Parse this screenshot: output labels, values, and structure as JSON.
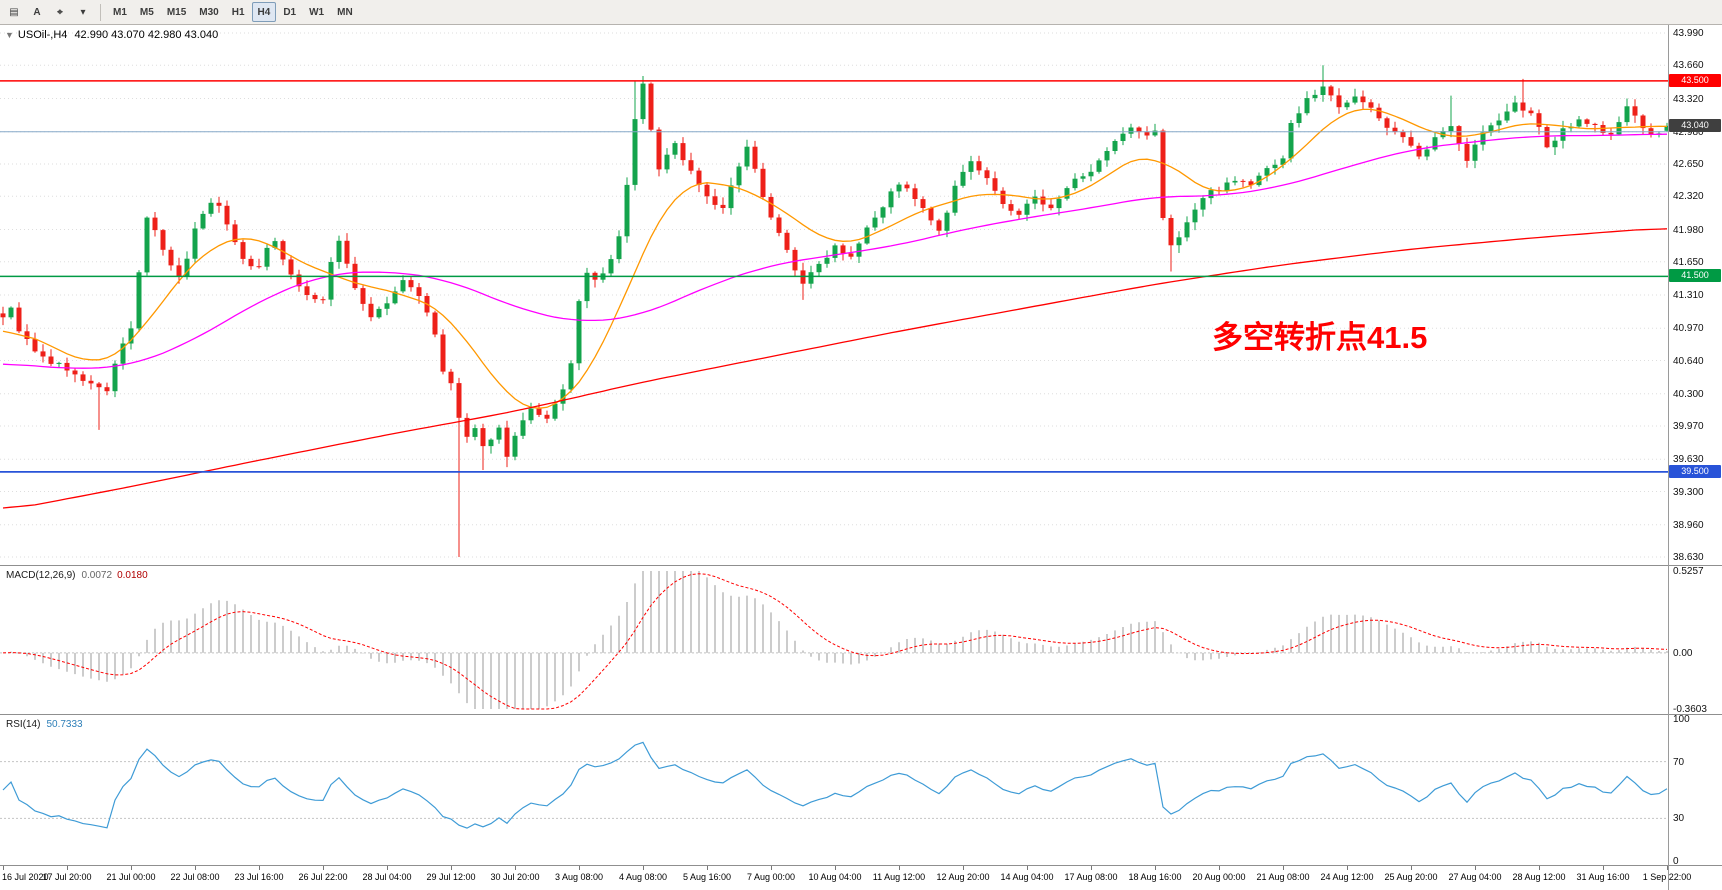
{
  "toolbar": {
    "tools": [
      {
        "name": "chart-templates-button",
        "icon": "templates-icon",
        "glyph": "▤"
      },
      {
        "name": "text-label-button",
        "icon": "text-label-icon",
        "glyph": "A"
      },
      {
        "name": "crosshair-tool-button",
        "icon": "crosshair-icon",
        "glyph": "⌖"
      },
      {
        "name": "tools-dropdown-button",
        "icon": "chevron-down-icon",
        "glyph": "▾"
      }
    ],
    "timeframes": [
      "M1",
      "M5",
      "M15",
      "M30",
      "H1",
      "H4",
      "D1",
      "W1",
      "MN"
    ],
    "active_timeframe": "H4"
  },
  "chart": {
    "title": "USOil-,H4",
    "ohlc": "42.990 43.070 42.980 43.040",
    "annotation": {
      "text": "多空转折点41.5",
      "color": "#ff0000"
    },
    "price_axis": {
      "ticks": [
        "43.990",
        "43.660",
        "43.320",
        "42.980",
        "42.650",
        "42.320",
        "41.980",
        "41.650",
        "41.310",
        "40.970",
        "40.640",
        "40.300",
        "39.970",
        "39.630",
        "39.300",
        "38.960",
        "38.630"
      ],
      "badges": [
        {
          "label": "43.500",
          "price": 43.5,
          "bg": "#ff0000"
        },
        {
          "label": "43.040",
          "price": 43.04,
          "bg": "#3f3f3f"
        },
        {
          "label": "41.500",
          "price": 41.5,
          "bg": "#009a44"
        },
        {
          "label": "39.500",
          "price": 39.5,
          "bg": "#2853d8"
        }
      ]
    },
    "time_axis": [
      "16 Jul 2020",
      "17 Jul 20:00",
      "21 Jul 00:00",
      "22 Jul 08:00",
      "23 Jul 16:00",
      "26 Jul 22:00",
      "28 Jul 04:00",
      "29 Jul 12:00",
      "30 Jul 20:00",
      "3 Aug 08:00",
      "4 Aug 08:00",
      "5 Aug 16:00",
      "7 Aug 00:00",
      "10 Aug 04:00",
      "11 Aug 12:00",
      "12 Aug 20:00",
      "14 Aug 04:00",
      "17 Aug 08:00",
      "18 Aug 16:00",
      "20 Aug 00:00",
      "21 Aug 08:00",
      "24 Aug 12:00",
      "25 Aug 20:00",
      "27 Aug 04:00",
      "28 Aug 12:00",
      "31 Aug 16:00",
      "1 Sep 22:00"
    ]
  },
  "macd_panel": {
    "label": "MACD(12,26,9)",
    "value_main": "0.0072",
    "value_signal": "0.0180",
    "axis": [
      "0.5257",
      "0.00",
      "-0.3603"
    ]
  },
  "rsi_panel": {
    "label": "RSI(14)",
    "value": "50.7333",
    "axis": [
      "100",
      "70",
      "30",
      "0"
    ]
  },
  "chart_data": {
    "type": "candlestick",
    "symbol": "USOil-",
    "timeframe": "H4",
    "title": "USOil-,H4 42.990 43.070 42.980 43.040",
    "bars": 208,
    "price_range": [
      38.63,
      43.99
    ],
    "current": {
      "open": 42.99,
      "high": 43.07,
      "low": 42.98,
      "close": 43.04
    },
    "colors": {
      "bull": "#14a44c",
      "bear": "#ee2019",
      "background": "#ffffff",
      "grid": "#dedede"
    },
    "hlines": [
      {
        "price": 43.5,
        "color": "#ff0000",
        "width": 1.5
      },
      {
        "price": 42.98,
        "color": "#86a8c8",
        "width": 1.0
      },
      {
        "price": 41.5,
        "color": "#009a44",
        "width": 1.5
      },
      {
        "price": 39.5,
        "color": "#2853d8",
        "width": 1.8
      }
    ],
    "close_path": [
      [
        0,
        41.1
      ],
      [
        1,
        41.16
      ],
      [
        2,
        40.96
      ],
      [
        4,
        40.72
      ],
      [
        6,
        40.62
      ],
      [
        8,
        40.56
      ],
      [
        10,
        40.42
      ],
      [
        12,
        40.38
      ],
      [
        13,
        40.3
      ],
      [
        14,
        40.62
      ],
      [
        15,
        40.8
      ],
      [
        16,
        40.96
      ],
      [
        17,
        41.55
      ],
      [
        18,
        42.1
      ],
      [
        19,
        41.95
      ],
      [
        20,
        41.75
      ],
      [
        22,
        41.48
      ],
      [
        23,
        41.7
      ],
      [
        24,
        41.98
      ],
      [
        25,
        42.15
      ],
      [
        26,
        42.28
      ],
      [
        27,
        42.2
      ],
      [
        28,
        42.05
      ],
      [
        29,
        41.85
      ],
      [
        30,
        41.68
      ],
      [
        32,
        41.58
      ],
      [
        33,
        41.78
      ],
      [
        34,
        41.88
      ],
      [
        35,
        41.7
      ],
      [
        36,
        41.52
      ],
      [
        38,
        41.3
      ],
      [
        40,
        41.26
      ],
      [
        41,
        41.62
      ],
      [
        42,
        41.86
      ],
      [
        43,
        41.65
      ],
      [
        44,
        41.38
      ],
      [
        46,
        41.08
      ],
      [
        48,
        41.22
      ],
      [
        50,
        41.46
      ],
      [
        52,
        41.3
      ],
      [
        53,
        41.15
      ],
      [
        54,
        40.88
      ],
      [
        55,
        40.52
      ],
      [
        56,
        40.4
      ],
      [
        57,
        40.05
      ],
      [
        58,
        39.85
      ],
      [
        59,
        39.92
      ],
      [
        60,
        39.74
      ],
      [
        61,
        39.86
      ],
      [
        62,
        39.94
      ],
      [
        63,
        39.68
      ],
      [
        64,
        39.86
      ],
      [
        65,
        40.02
      ],
      [
        66,
        40.12
      ],
      [
        68,
        40.02
      ],
      [
        69,
        40.18
      ],
      [
        70,
        40.36
      ],
      [
        71,
        40.6
      ],
      [
        72,
        41.22
      ],
      [
        73,
        41.56
      ],
      [
        74,
        41.44
      ],
      [
        75,
        41.52
      ],
      [
        76,
        41.66
      ],
      [
        77,
        41.92
      ],
      [
        78,
        42.42
      ],
      [
        79,
        43.12
      ],
      [
        80,
        43.46
      ],
      [
        81,
        42.98
      ],
      [
        82,
        42.62
      ],
      [
        83,
        42.74
      ],
      [
        84,
        42.86
      ],
      [
        85,
        42.7
      ],
      [
        86,
        42.58
      ],
      [
        87,
        42.45
      ],
      [
        88,
        42.32
      ],
      [
        90,
        42.18
      ],
      [
        91,
        42.42
      ],
      [
        92,
        42.62
      ],
      [
        93,
        42.8
      ],
      [
        94,
        42.58
      ],
      [
        95,
        42.34
      ],
      [
        96,
        42.12
      ],
      [
        97,
        41.94
      ],
      [
        98,
        41.76
      ],
      [
        99,
        41.58
      ],
      [
        100,
        41.44
      ],
      [
        101,
        41.52
      ],
      [
        102,
        41.62
      ],
      [
        104,
        41.82
      ],
      [
        105,
        41.76
      ],
      [
        106,
        41.72
      ],
      [
        107,
        41.86
      ],
      [
        108,
        42.02
      ],
      [
        110,
        42.22
      ],
      [
        111,
        42.35
      ],
      [
        112,
        42.46
      ],
      [
        113,
        42.38
      ],
      [
        114,
        42.28
      ],
      [
        116,
        42.08
      ],
      [
        117,
        41.94
      ],
      [
        118,
        42.15
      ],
      [
        119,
        42.4
      ],
      [
        120,
        42.55
      ],
      [
        121,
        42.68
      ],
      [
        122,
        42.6
      ],
      [
        123,
        42.48
      ],
      [
        124,
        42.35
      ],
      [
        126,
        42.18
      ],
      [
        127,
        42.14
      ],
      [
        128,
        42.22
      ],
      [
        129,
        42.32
      ],
      [
        130,
        42.24
      ],
      [
        131,
        42.18
      ],
      [
        132,
        42.28
      ],
      [
        133,
        42.4
      ],
      [
        134,
        42.48
      ],
      [
        135,
        42.55
      ],
      [
        136,
        42.6
      ],
      [
        137,
        42.66
      ],
      [
        138,
        42.76
      ],
      [
        139,
        42.86
      ],
      [
        140,
        42.94
      ],
      [
        141,
        43.0
      ],
      [
        142,
        42.96
      ],
      [
        143,
        42.92
      ],
      [
        144,
        43.0
      ],
      [
        145,
        42.1
      ],
      [
        146,
        41.8
      ],
      [
        147,
        41.92
      ],
      [
        148,
        42.06
      ],
      [
        149,
        42.18
      ],
      [
        150,
        42.3
      ],
      [
        151,
        42.36
      ],
      [
        152,
        42.4
      ],
      [
        153,
        42.46
      ],
      [
        154,
        42.5
      ],
      [
        155,
        42.46
      ],
      [
        156,
        42.44
      ],
      [
        157,
        42.52
      ],
      [
        158,
        42.6
      ],
      [
        159,
        42.66
      ],
      [
        160,
        42.72
      ],
      [
        161,
        43.06
      ],
      [
        162,
        43.18
      ],
      [
        163,
        43.3
      ],
      [
        164,
        43.38
      ],
      [
        165,
        43.44
      ],
      [
        166,
        43.34
      ],
      [
        167,
        43.26
      ],
      [
        168,
        43.3
      ],
      [
        169,
        43.36
      ],
      [
        170,
        43.28
      ],
      [
        171,
        43.2
      ],
      [
        172,
        43.12
      ],
      [
        173,
        43.04
      ],
      [
        174,
        42.98
      ],
      [
        175,
        42.94
      ],
      [
        176,
        42.82
      ],
      [
        177,
        42.7
      ],
      [
        178,
        42.8
      ],
      [
        179,
        42.9
      ],
      [
        180,
        42.98
      ],
      [
        181,
        43.06
      ],
      [
        182,
        42.88
      ],
      [
        183,
        42.7
      ],
      [
        184,
        42.84
      ],
      [
        185,
        42.96
      ],
      [
        186,
        43.04
      ],
      [
        187,
        43.1
      ],
      [
        188,
        43.18
      ],
      [
        189,
        43.26
      ],
      [
        190,
        43.22
      ],
      [
        191,
        43.18
      ],
      [
        192,
        43.0
      ],
      [
        193,
        42.8
      ],
      [
        194,
        42.9
      ],
      [
        195,
        43.0
      ],
      [
        196,
        43.06
      ],
      [
        197,
        43.1
      ],
      [
        198,
        43.08
      ],
      [
        199,
        43.04
      ],
      [
        200,
        42.98
      ],
      [
        201,
        42.94
      ],
      [
        202,
        43.08
      ],
      [
        203,
        43.24
      ],
      [
        204,
        43.12
      ],
      [
        205,
        43.0
      ],
      [
        206,
        42.96
      ],
      [
        207,
        42.98
      ],
      [
        208,
        43.04
      ]
    ],
    "wick_extremes": [
      {
        "i": 12,
        "low": 39.93
      },
      {
        "i": 57,
        "low": 38.63
      },
      {
        "i": 60,
        "low": 39.52
      },
      {
        "i": 63,
        "low": 39.55
      },
      {
        "i": 79,
        "high": 43.5
      },
      {
        "i": 80,
        "high": 43.55
      },
      {
        "i": 100,
        "low": 41.26
      },
      {
        "i": 146,
        "low": 41.55
      },
      {
        "i": 165,
        "high": 43.66
      },
      {
        "i": 181,
        "high": 43.35
      },
      {
        "i": 190,
        "high": 43.52
      },
      {
        "i": 203,
        "high": 43.32
      }
    ],
    "moving_averages": [
      {
        "name": "ma-fast",
        "color": "#ff9800",
        "path": [
          [
            0,
            41.0
          ],
          [
            4,
            40.88
          ],
          [
            8,
            40.7
          ],
          [
            12,
            40.55
          ],
          [
            16,
            40.75
          ],
          [
            20,
            41.3
          ],
          [
            24,
            41.65
          ],
          [
            28,
            41.95
          ],
          [
            32,
            41.9
          ],
          [
            36,
            41.72
          ],
          [
            40,
            41.5
          ],
          [
            44,
            41.48
          ],
          [
            48,
            41.3
          ],
          [
            52,
            41.32
          ],
          [
            56,
            41.1
          ],
          [
            60,
            40.6
          ],
          [
            64,
            40.15
          ],
          [
            68,
            40.05
          ],
          [
            72,
            40.35
          ],
          [
            76,
            40.9
          ],
          [
            80,
            41.8
          ],
          [
            84,
            42.45
          ],
          [
            88,
            42.5
          ],
          [
            92,
            42.4
          ],
          [
            96,
            42.3
          ],
          [
            100,
            42.0
          ],
          [
            104,
            41.8
          ],
          [
            108,
            41.85
          ],
          [
            112,
            42.1
          ],
          [
            116,
            42.2
          ],
          [
            120,
            42.3
          ],
          [
            124,
            42.4
          ],
          [
            128,
            42.28
          ],
          [
            132,
            42.26
          ],
          [
            136,
            42.4
          ],
          [
            140,
            42.65
          ],
          [
            144,
            42.85
          ],
          [
            148,
            42.45
          ],
          [
            152,
            42.3
          ],
          [
            156,
            42.42
          ],
          [
            160,
            42.58
          ],
          [
            164,
            42.95
          ],
          [
            168,
            43.25
          ],
          [
            172,
            43.25
          ],
          [
            176,
            43.05
          ],
          [
            180,
            42.92
          ],
          [
            184,
            42.9
          ],
          [
            188,
            43.05
          ],
          [
            192,
            43.1
          ],
          [
            196,
            43.0
          ],
          [
            200,
            43.0
          ],
          [
            204,
            43.05
          ],
          [
            208,
            43.02
          ]
        ]
      },
      {
        "name": "ma-mid",
        "color": "#ff00ff",
        "path": [
          [
            0,
            40.62
          ],
          [
            8,
            40.55
          ],
          [
            16,
            40.58
          ],
          [
            24,
            40.85
          ],
          [
            32,
            41.25
          ],
          [
            40,
            41.52
          ],
          [
            48,
            41.56
          ],
          [
            56,
            41.46
          ],
          [
            64,
            41.18
          ],
          [
            72,
            41.02
          ],
          [
            80,
            41.1
          ],
          [
            88,
            41.4
          ],
          [
            96,
            41.62
          ],
          [
            104,
            41.72
          ],
          [
            112,
            41.82
          ],
          [
            120,
            41.98
          ],
          [
            128,
            42.1
          ],
          [
            136,
            42.2
          ],
          [
            144,
            42.32
          ],
          [
            152,
            42.32
          ],
          [
            160,
            42.42
          ],
          [
            168,
            42.62
          ],
          [
            176,
            42.8
          ],
          [
            184,
            42.88
          ],
          [
            192,
            42.94
          ],
          [
            200,
            42.94
          ],
          [
            208,
            42.96
          ]
        ]
      },
      {
        "name": "ma-slow",
        "color": "#ff0000",
        "path": [
          [
            0,
            39.1
          ],
          [
            16,
            39.35
          ],
          [
            32,
            39.62
          ],
          [
            48,
            39.88
          ],
          [
            64,
            40.12
          ],
          [
            80,
            40.42
          ],
          [
            96,
            40.68
          ],
          [
            112,
            40.94
          ],
          [
            128,
            41.18
          ],
          [
            144,
            41.42
          ],
          [
            160,
            41.62
          ],
          [
            176,
            41.78
          ],
          [
            192,
            41.9
          ],
          [
            208,
            42.0
          ]
        ]
      }
    ],
    "indicators": {
      "macd": {
        "fast": 12,
        "slow": 26,
        "signal": 9,
        "last_main": 0.0072,
        "last_signal": 0.018,
        "range": [
          -0.3603,
          0.5257
        ],
        "histogram_color": "#9a9a9a",
        "signal_color": "#ff0000"
      },
      "rsi": {
        "period": 14,
        "last": 50.7333,
        "range": [
          0,
          100
        ],
        "levels": [
          30,
          70
        ],
        "color": "#3e9bd6"
      }
    },
    "legend_position": "none",
    "grid": true
  }
}
